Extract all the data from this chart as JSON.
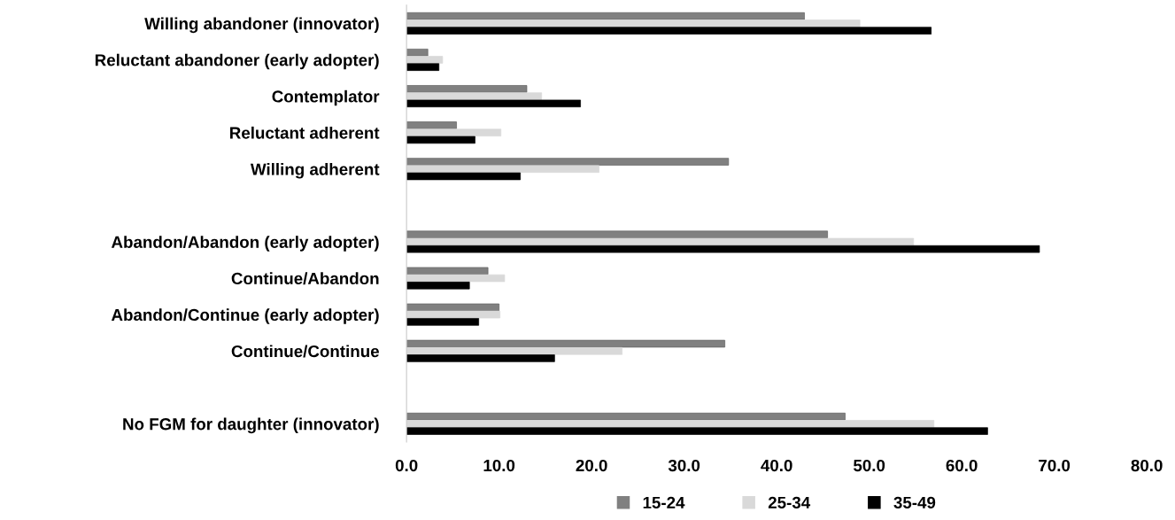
{
  "chart_data": {
    "type": "bar",
    "orientation": "horizontal",
    "categories": [
      "Willing abandoner (innovator)",
      "Reluctant abandoner (early adopter)",
      "Contemplator",
      "Reluctant adherent",
      "Willing adherent",
      null,
      "Abandon/Abandon (early adopter)",
      "Continue/Abandon",
      "Abandon/Continue (early adopter)",
      "Continue/Continue",
      null,
      "No FGM for daughter (innovator)"
    ],
    "series": [
      {
        "name": "15-24",
        "color": "#808080",
        "values": [
          43.0,
          2.3,
          13.0,
          5.4,
          34.8,
          null,
          45.5,
          8.8,
          10.0,
          34.4,
          null,
          47.4
        ]
      },
      {
        "name": "25-34",
        "color": "#d9d9d9",
        "values": [
          49.0,
          3.9,
          14.6,
          10.2,
          20.8,
          null,
          54.8,
          10.6,
          10.1,
          23.3,
          null,
          57.0
        ]
      },
      {
        "name": "35-49",
        "color": "#000000",
        "values": [
          56.7,
          3.5,
          18.8,
          7.4,
          12.3,
          null,
          68.4,
          6.8,
          7.8,
          16.0,
          null,
          62.8
        ]
      }
    ],
    "xlim": [
      0,
      80
    ],
    "xticks": [
      {
        "value": 0,
        "label": "0.0"
      },
      {
        "value": 10,
        "label": "10.0"
      },
      {
        "value": 20,
        "label": "20.0"
      },
      {
        "value": 30,
        "label": "30.0"
      },
      {
        "value": 40,
        "label": "40.0"
      },
      {
        "value": 50,
        "label": "50.0"
      },
      {
        "value": 60,
        "label": "60.0"
      },
      {
        "value": 70,
        "label": "70.0"
      },
      {
        "value": 80,
        "label": "80.0"
      }
    ],
    "grid": false,
    "legend": "bottom"
  }
}
